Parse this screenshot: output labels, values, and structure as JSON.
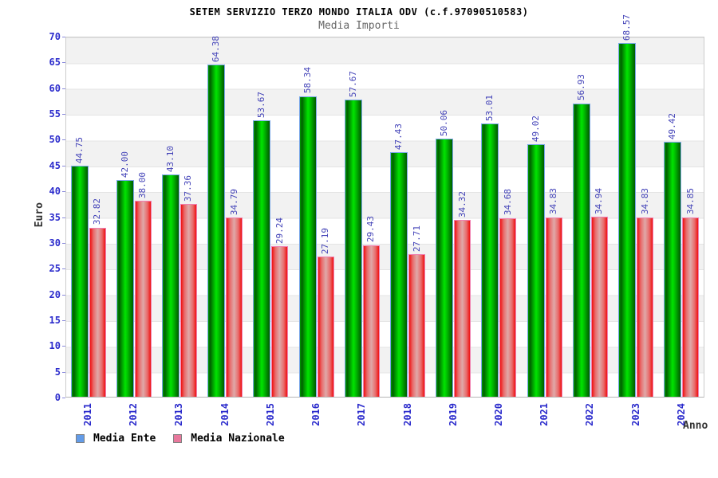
{
  "chart_data": {
    "type": "bar",
    "title": "SETEM SERVIZIO TERZO MONDO ITALIA ODV (c.f.97090510583)",
    "subtitle": "Media Importi",
    "xlabel": "Anno",
    "ylabel": "Euro",
    "ylim": [
      0,
      70
    ],
    "ytick_step": 5,
    "grid": "horizontal gray/white bands every 5 units",
    "legend_position": "bottom-left",
    "value_label_decimals": 2,
    "categories": [
      "2011",
      "2012",
      "2013",
      "2014",
      "2015",
      "2016",
      "2017",
      "2018",
      "2019",
      "2020",
      "2021",
      "2022",
      "2023",
      "2024"
    ],
    "series": [
      {
        "name": "Media Ente",
        "legend_swatch_color": "#639ce8",
        "bar_style": "green cylinder gradient, light-blue outline",
        "values": [
          44.75,
          42.0,
          43.1,
          64.38,
          53.67,
          58.34,
          57.67,
          47.43,
          50.06,
          53.01,
          49.02,
          56.93,
          68.57,
          49.42
        ]
      },
      {
        "name": "Media Nazionale",
        "legend_swatch_color": "#e8789c",
        "bar_style": "red cylinder gradient with pink center, pink outline",
        "values": [
          32.82,
          38.0,
          37.36,
          34.79,
          29.24,
          27.19,
          29.43,
          27.71,
          34.32,
          34.68,
          34.83,
          34.94,
          34.83,
          34.85
        ]
      }
    ],
    "colors": {
      "green_bright": "#00e400",
      "green_dark": "#006000",
      "green_border": "#7aa7e8",
      "red_edge": "#ee1111",
      "red_center": "#dfa9a9",
      "red_border": "#f07fb0",
      "value_label": "#4343b8",
      "axis_label": "#2b2bcc",
      "band_gray": "#f2f2f2",
      "plot_border": "#cccccc",
      "subtitle_color": "#666666",
      "axis_title_color": "#333333"
    }
  }
}
